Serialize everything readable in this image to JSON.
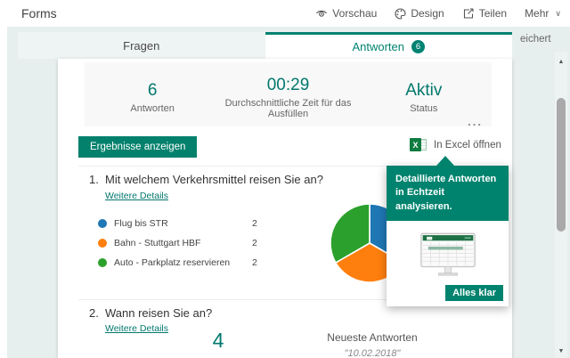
{
  "colors": {
    "primary": "#008272",
    "button": "#03816c",
    "tooltip_header": "#00836e"
  },
  "topbar": {
    "app_title": "Forms",
    "preview_label": "Vorschau",
    "design_label": "Design",
    "share_label": "Teilen",
    "more_label": "Mehr",
    "saved_status": "eichert"
  },
  "tabs": {
    "questions_label": "Fragen",
    "responses_label": "Antworten",
    "responses_badge": "6"
  },
  "summary": {
    "stats": [
      {
        "value": "6",
        "label": "Antworten"
      },
      {
        "value": "00:29",
        "label": "Durchschnittliche Zeit für das Ausfüllen"
      },
      {
        "value": "Aktiv",
        "label": "Status"
      }
    ],
    "more_options": "..."
  },
  "actions": {
    "show_results": "Ergebnisse anzeigen",
    "open_excel": "In Excel öffnen"
  },
  "questions": [
    {
      "number": "1.",
      "title": "Mit welchem Verkehrsmittel reisen Sie an?",
      "details": "Weitere Details",
      "legend": [
        {
          "label": "Flug bis STR",
          "value": "2",
          "color": "#1f77b4"
        },
        {
          "label": "Bahn - Stuttgart HBF",
          "value": "2",
          "color": "#ff7f0e"
        },
        {
          "label": "Auto - Parkplatz reservieren",
          "value": "2",
          "color": "#2ca02c"
        }
      ]
    },
    {
      "number": "2.",
      "title": "Wann reisen Sie an?",
      "details": "Weitere Details",
      "count": "4",
      "latest_label": "Neueste Antworten",
      "latest_value": "\"10.02.2018\""
    }
  ],
  "tooltip": {
    "message": "Detaillierte Antworten in Echtzeit analysieren.",
    "confirm": "Alles klar"
  },
  "chart_data": {
    "type": "pie",
    "title": "Mit welchem Verkehrsmittel reisen Sie an?",
    "labels": [
      "Flug bis STR",
      "Bahn - Stuttgart HBF",
      "Auto - Parkplatz reservieren"
    ],
    "values": [
      2,
      2,
      2
    ],
    "colors": [
      "#1f77b4",
      "#ff7f0e",
      "#2ca02c"
    ],
    "total_responses": 6,
    "start_angle_deg": 0,
    "direction": "clockwise",
    "legend_position": "left"
  }
}
